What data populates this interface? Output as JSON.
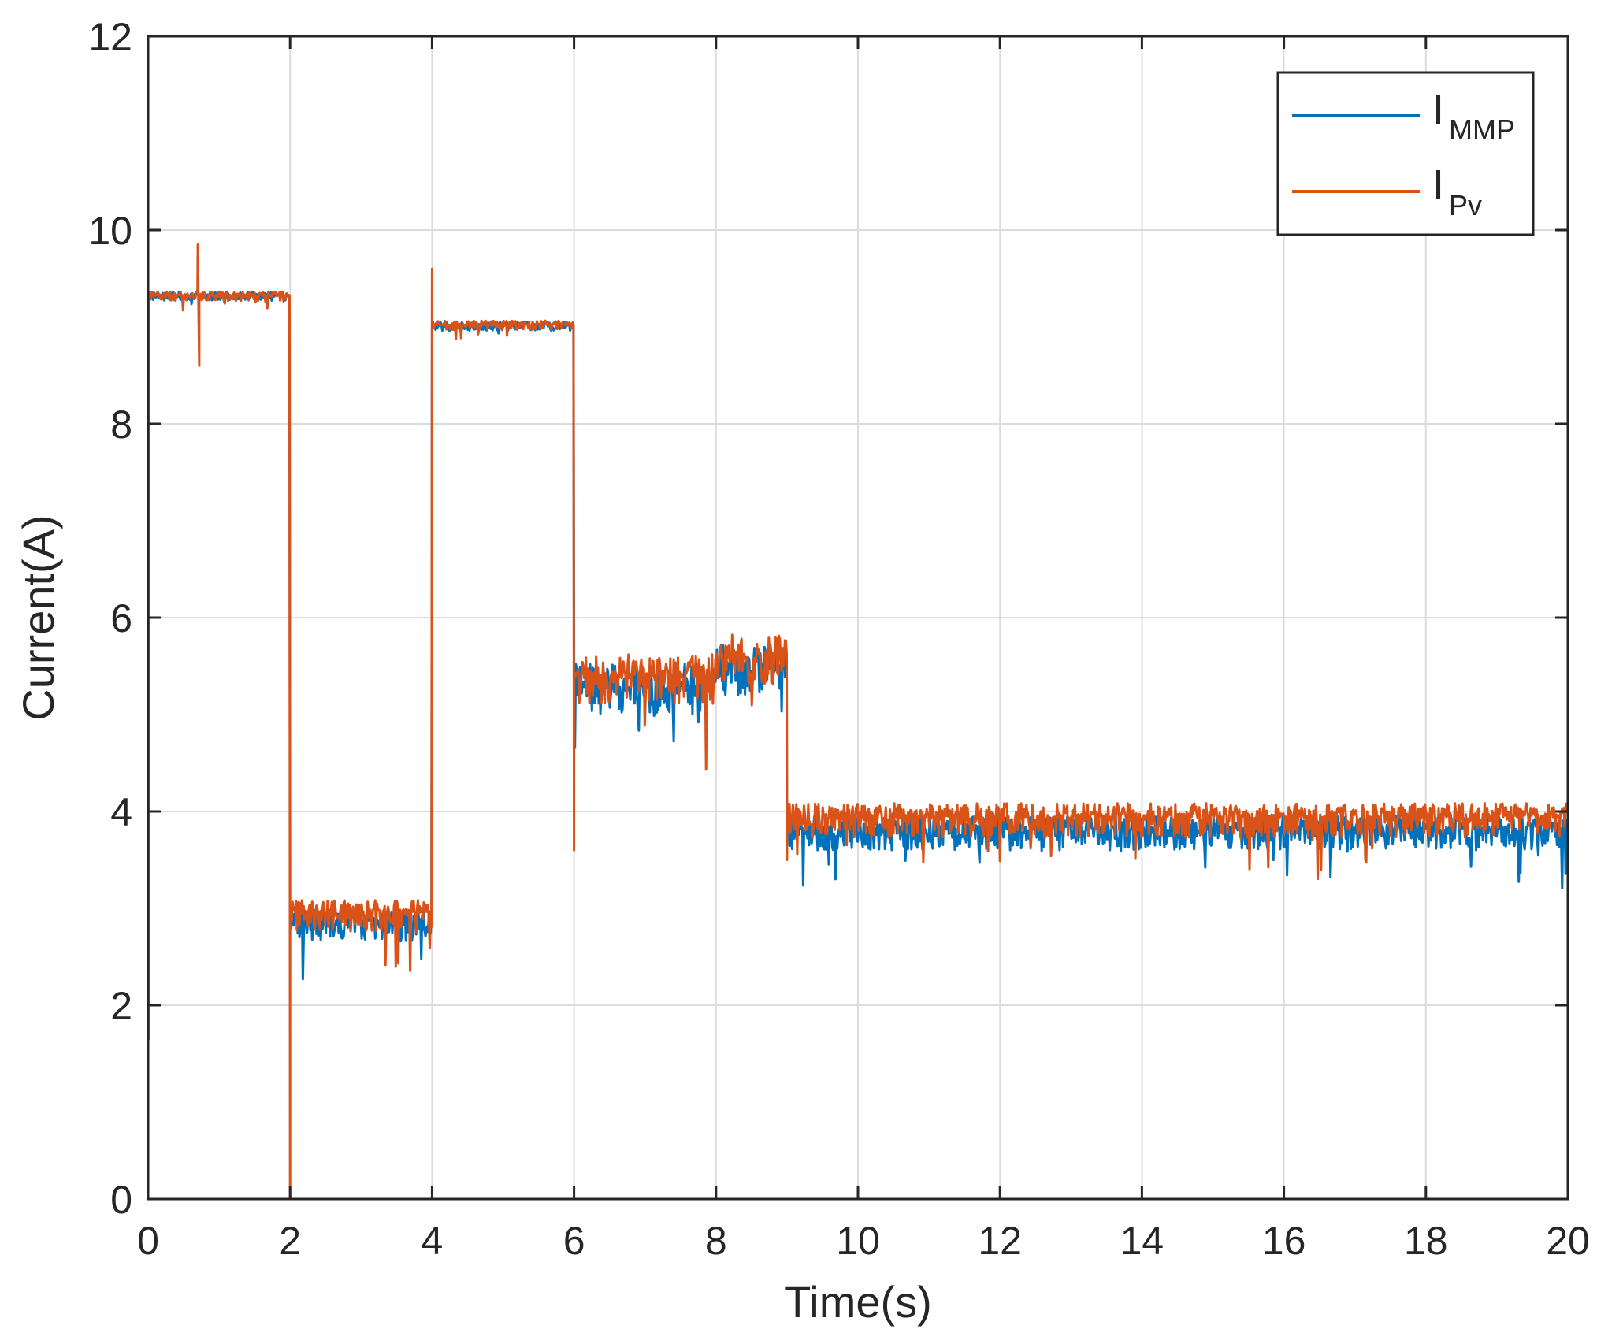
{
  "chart_data": {
    "type": "line",
    "xlabel": "Time(s)",
    "ylabel": "Current(A)",
    "xlim": [
      0,
      20
    ],
    "ylim": [
      0,
      12
    ],
    "xticks": [
      "0",
      "2",
      "4",
      "6",
      "8",
      "10",
      "12",
      "14",
      "16",
      "18",
      "20"
    ],
    "yticks": [
      "0",
      "2",
      "4",
      "6",
      "8",
      "10",
      "12"
    ],
    "grid": true,
    "legend_position": "top-right",
    "series": [
      {
        "name": "I",
        "name_sub": "MMP",
        "color": "#0072BD",
        "segments": [
          {
            "t_start": 0,
            "t_end": 2,
            "level": 9.33
          },
          {
            "t_start": 2,
            "t_end": 4,
            "level": 2.9
          },
          {
            "t_start": 4,
            "t_end": 6,
            "level": 9.02
          },
          {
            "t_start": 6,
            "t_end": 8,
            "level": 5.35
          },
          {
            "t_start": 8,
            "t_end": 9,
            "level": 5.55
          },
          {
            "t_start": 9,
            "t_end": 20,
            "level": 3.85
          }
        ]
      },
      {
        "name": "I",
        "name_sub": "Pv",
        "color": "#D95319",
        "segments": [
          {
            "t_start": 0,
            "t_end": 2,
            "level": 9.33
          },
          {
            "t_start": 2,
            "t_end": 4,
            "level": 3.0
          },
          {
            "t_start": 4,
            "t_end": 6,
            "level": 9.03
          },
          {
            "t_start": 6,
            "t_end": 8,
            "level": 5.45
          },
          {
            "t_start": 8,
            "t_end": 9,
            "level": 5.65
          },
          {
            "t_start": 9,
            "t_end": 20,
            "level": 3.98
          }
        ],
        "transients": [
          {
            "t": 0.0,
            "value": 10.1
          },
          {
            "t": 0.01,
            "value": 1.65
          },
          {
            "t": 0.7,
            "value": 9.85
          },
          {
            "t": 0.72,
            "value": 8.6
          },
          {
            "t": 2.0,
            "value": 0.0
          },
          {
            "t": 4.0,
            "value": 9.6
          },
          {
            "t": 6.0,
            "value": 3.6
          },
          {
            "t": 9.0,
            "value": 3.5
          }
        ]
      }
    ]
  }
}
